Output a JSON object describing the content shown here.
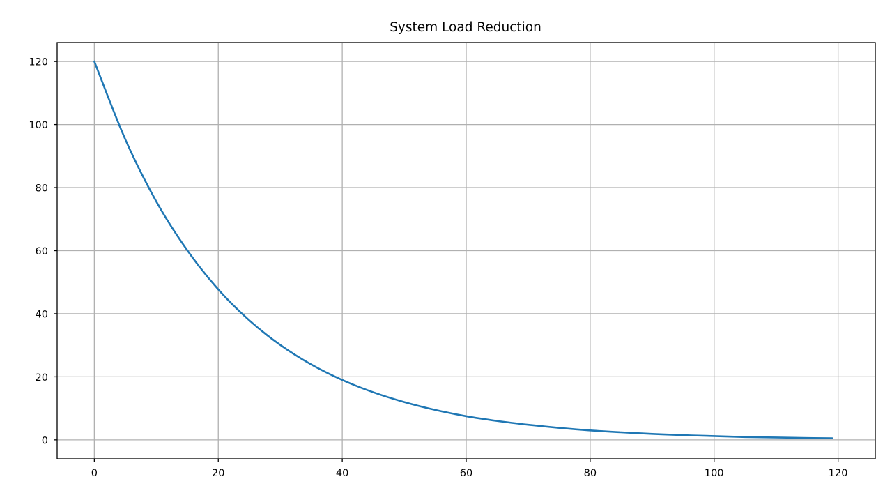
{
  "chart_data": {
    "type": "line",
    "title": "System Load Reduction",
    "xlabel": "",
    "ylabel": "",
    "xlim": [
      -6,
      126
    ],
    "ylim": [
      -6,
      126
    ],
    "xticks": [
      0,
      20,
      40,
      60,
      80,
      100,
      120
    ],
    "yticks": [
      0,
      20,
      40,
      60,
      80,
      100,
      120
    ],
    "grid": true,
    "series": [
      {
        "color": "#1f77b4",
        "x": [
          0,
          5,
          10,
          15,
          20,
          25,
          30,
          35,
          40,
          45,
          50,
          55,
          60,
          65,
          70,
          75,
          80,
          85,
          90,
          95,
          100,
          105,
          110,
          115,
          119
        ],
        "y": [
          120,
          95.3,
          75.6,
          60.1,
          47.7,
          37.9,
          30.1,
          23.9,
          19.0,
          15.1,
          12.0,
          9.5,
          7.5,
          6.0,
          4.8,
          3.8,
          3.0,
          2.4,
          1.9,
          1.5,
          1.2,
          0.9,
          0.75,
          0.6,
          0.5
        ]
      }
    ]
  }
}
